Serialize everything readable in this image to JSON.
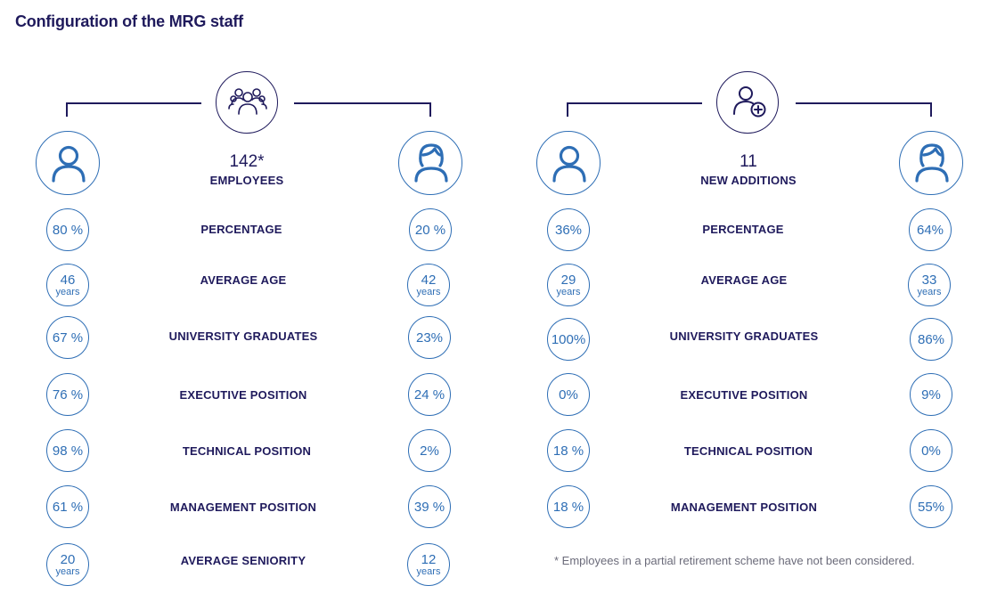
{
  "title": "Configuration of the MRG staff",
  "colors": {
    "navy": "#1f1a5c",
    "blue": "#2e6eb5"
  },
  "panels": [
    {
      "hub_icon": "group-icon",
      "total": "142*",
      "total_label": "EMPLOYEES",
      "rows": [
        {
          "label": "PERCENTAGE",
          "men": "80 %",
          "men_unit": "",
          "women": "20 %",
          "women_unit": ""
        },
        {
          "label": "AVERAGE AGE",
          "men": "46",
          "men_unit": "years",
          "women": "42",
          "women_unit": "years"
        },
        {
          "label": "UNIVERSITY GRADUATES",
          "men": "67 %",
          "men_unit": "",
          "women": "23%",
          "women_unit": ""
        },
        {
          "label": "EXECUTIVE POSITION",
          "men": "76 %",
          "men_unit": "",
          "women": "24 %",
          "women_unit": ""
        },
        {
          "label": "TECHNICAL POSITION",
          "men": "98 %",
          "men_unit": "",
          "women": "2%",
          "women_unit": ""
        },
        {
          "label": "MANAGEMENT POSITION",
          "men": "61 %",
          "men_unit": "",
          "women": "39 %",
          "women_unit": ""
        },
        {
          "label": "AVERAGE SENIORITY",
          "men": "20",
          "men_unit": "years",
          "women": "12",
          "women_unit": "years"
        }
      ]
    },
    {
      "hub_icon": "add-person-icon",
      "total": "11",
      "total_label": "NEW ADDITIONS",
      "rows": [
        {
          "label": "PERCENTAGE",
          "men": "36%",
          "men_unit": "",
          "women": "64%",
          "women_unit": ""
        },
        {
          "label": "AVERAGE AGE",
          "men": "29",
          "men_unit": "years",
          "women": "33",
          "women_unit": "years"
        },
        {
          "label": "UNIVERSITY GRADUATES",
          "men": "100%",
          "men_unit": "",
          "women": "86%",
          "women_unit": ""
        },
        {
          "label": "EXECUTIVE POSITION",
          "men": "0%",
          "men_unit": "",
          "women": "9%",
          "women_unit": ""
        },
        {
          "label": "TECHNICAL POSITION",
          "men": "18 %",
          "men_unit": "",
          "women": "0%",
          "women_unit": ""
        },
        {
          "label": "MANAGEMENT POSITION",
          "men": "18 %",
          "men_unit": "",
          "women": "55%",
          "women_unit": ""
        }
      ]
    }
  ],
  "footnote": "* Employees in a partial retirement scheme have not been considered."
}
